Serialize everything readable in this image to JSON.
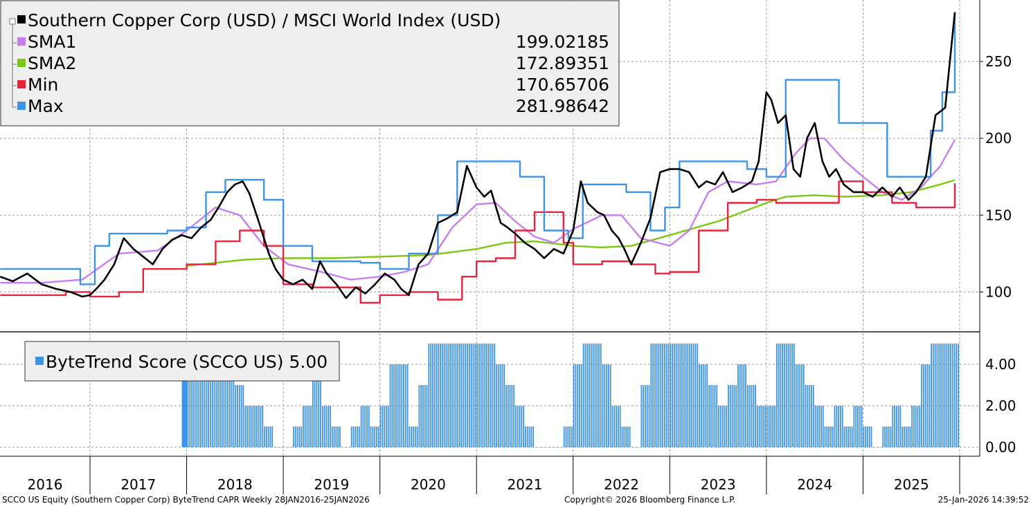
{
  "chart_data": [
    {
      "type": "line",
      "title": "Southern Copper Corp (USD) / MSCI World Index (USD)",
      "x_labels": [
        "2016",
        "2017",
        "2018",
        "2019",
        "2020",
        "2021",
        "2022",
        "2023",
        "2024",
        "2025"
      ],
      "x_range": [
        2016.07,
        2026.07
      ],
      "ylim": [
        75,
        290
      ],
      "yticks": [
        100,
        150,
        200,
        250
      ],
      "grid": true,
      "legend_position": "top-left",
      "series": [
        {
          "name": "Southern Copper Corp (USD) / MSCI World Index (USD)",
          "color": "#000000",
          "last": "",
          "x": [
            2016.07,
            2016.2,
            2016.35,
            2016.5,
            2016.65,
            2016.8,
            2016.92,
            2017.0,
            2017.08,
            2017.15,
            2017.25,
            2017.35,
            2017.45,
            2017.55,
            2017.65,
            2017.75,
            2017.85,
            2017.95,
            2018.05,
            2018.15,
            2018.25,
            2018.33,
            2018.42,
            2018.5,
            2018.58,
            2018.65,
            2018.75,
            2018.85,
            2018.92,
            2019.0,
            2019.1,
            2019.2,
            2019.3,
            2019.38,
            2019.45,
            2019.55,
            2019.65,
            2019.75,
            2019.85,
            2019.95,
            2020.05,
            2020.15,
            2020.22,
            2020.3,
            2020.4,
            2020.5,
            2020.6,
            2020.7,
            2020.8,
            2020.9,
            2021.0,
            2021.08,
            2021.15,
            2021.25,
            2021.32,
            2021.4,
            2021.5,
            2021.6,
            2021.7,
            2021.8,
            2021.9,
            2022.0,
            2022.08,
            2022.15,
            2022.25,
            2022.32,
            2022.4,
            2022.47,
            2022.53,
            2022.6,
            2022.7,
            2022.8,
            2022.9,
            2023.0,
            2023.1,
            2023.2,
            2023.3,
            2023.38,
            2023.47,
            2023.55,
            2023.65,
            2023.75,
            2023.85,
            2023.92,
            2024.0,
            2024.05,
            2024.12,
            2024.2,
            2024.28,
            2024.35,
            2024.42,
            2024.5,
            2024.58,
            2024.65,
            2024.72,
            2024.8,
            2024.9,
            2025.0,
            2025.1,
            2025.2,
            2025.3,
            2025.38,
            2025.47,
            2025.55,
            2025.65,
            2025.75,
            2025.85,
            2025.95
          ],
          "y": [
            110,
            107,
            112,
            105,
            102,
            100,
            97,
            98,
            103,
            108,
            118,
            135,
            128,
            123,
            118,
            128,
            134,
            137,
            135,
            142,
            147,
            155,
            165,
            170,
            172,
            164,
            145,
            125,
            115,
            108,
            105,
            108,
            102,
            120,
            112,
            105,
            96,
            103,
            99,
            105,
            112,
            108,
            102,
            98,
            118,
            125,
            145,
            148,
            152,
            182,
            168,
            162,
            166,
            145,
            142,
            138,
            132,
            128,
            122,
            128,
            125,
            140,
            172,
            158,
            152,
            150,
            140,
            135,
            128,
            118,
            132,
            148,
            178,
            180,
            180,
            178,
            168,
            172,
            170,
            178,
            165,
            168,
            172,
            185,
            230,
            225,
            210,
            215,
            180,
            175,
            200,
            210,
            185,
            175,
            180,
            170,
            165,
            165,
            162,
            168,
            162,
            168,
            160,
            165,
            175,
            215,
            220,
            281.99
          ]
        },
        {
          "name": "SMA1",
          "color": "#c77cf2",
          "last": "199.02185",
          "x": [
            2016.07,
            2016.5,
            2016.92,
            2017.3,
            2017.7,
            2018.0,
            2018.3,
            2018.55,
            2018.8,
            2019.05,
            2019.4,
            2019.7,
            2020.0,
            2020.25,
            2020.5,
            2020.75,
            2021.0,
            2021.2,
            2021.4,
            2021.6,
            2021.8,
            2022.0,
            2022.3,
            2022.5,
            2022.7,
            2023.0,
            2023.2,
            2023.4,
            2023.6,
            2023.9,
            2024.1,
            2024.3,
            2024.45,
            2024.6,
            2024.8,
            2025.0,
            2025.2,
            2025.4,
            2025.6,
            2025.8,
            2025.95
          ],
          "y": [
            106,
            106,
            108,
            125,
            127,
            140,
            155,
            150,
            130,
            118,
            113,
            108,
            110,
            113,
            118,
            142,
            157,
            158,
            146,
            136,
            132,
            141,
            150,
            150,
            135,
            130,
            140,
            165,
            172,
            170,
            172,
            190,
            200,
            200,
            186,
            175,
            165,
            160,
            168,
            182,
            199.02
          ]
        },
        {
          "name": "SMA2",
          "color": "#7dc714",
          "last": "172.89351",
          "x": [
            2018.0,
            2018.3,
            2018.6,
            2019.0,
            2019.5,
            2020.0,
            2020.5,
            2021.0,
            2021.3,
            2021.6,
            2022.0,
            2022.3,
            2022.6,
            2023.0,
            2023.5,
            2024.0,
            2024.2,
            2024.5,
            2024.8,
            2025.2,
            2025.5,
            2025.8,
            2025.95
          ],
          "y": [
            117,
            119,
            121,
            122,
            122,
            123,
            124,
            128,
            132,
            133,
            130,
            129,
            130,
            137,
            146,
            158,
            162,
            163,
            162,
            163,
            165,
            170,
            172.89
          ]
        },
        {
          "name": "Min",
          "color": "#e8233f",
          "last": "170.65706",
          "x": [
            2016.07,
            2016.4,
            2016.75,
            2017.0,
            2017.15,
            2017.3,
            2017.55,
            2017.85,
            2018.0,
            2018.3,
            2018.55,
            2018.8,
            2019.0,
            2019.3,
            2019.5,
            2019.8,
            2020.0,
            2020.3,
            2020.6,
            2020.85,
            2021.0,
            2021.2,
            2021.4,
            2021.6,
            2021.9,
            2022.0,
            2022.3,
            2022.6,
            2022.85,
            2023.0,
            2023.3,
            2023.6,
            2023.9,
            2024.1,
            2024.3,
            2024.5,
            2024.75,
            2025.0,
            2025.3,
            2025.55,
            2025.8,
            2025.95
          ],
          "y": [
            98,
            98,
            100,
            97,
            97,
            100,
            115,
            115,
            118,
            133,
            140,
            130,
            105,
            103,
            103,
            93,
            98,
            100,
            95,
            110,
            120,
            122,
            140,
            152,
            132,
            118,
            120,
            118,
            112,
            113,
            140,
            158,
            160,
            158,
            158,
            158,
            172,
            165,
            158,
            155,
            155,
            170.66
          ]
        },
        {
          "name": "Max",
          "color": "#3e93e6",
          "last": "281.98642",
          "x": [
            2016.07,
            2016.4,
            2016.7,
            2016.9,
            2017.05,
            2017.2,
            2017.4,
            2017.6,
            2017.8,
            2018.0,
            2018.2,
            2018.4,
            2018.55,
            2018.8,
            2019.0,
            2019.3,
            2019.5,
            2019.8,
            2020.0,
            2020.3,
            2020.6,
            2020.8,
            2020.95,
            2021.2,
            2021.45,
            2021.7,
            2021.95,
            2022.1,
            2022.3,
            2022.55,
            2022.8,
            2022.95,
            2023.1,
            2023.5,
            2023.8,
            2024.0,
            2024.2,
            2024.5,
            2024.75,
            2025.0,
            2025.25,
            2025.5,
            2025.7,
            2025.82,
            2025.95
          ],
          "y": [
            115,
            115,
            115,
            105,
            130,
            138,
            138,
            138,
            140,
            142,
            165,
            173,
            173,
            160,
            130,
            120,
            120,
            119,
            115,
            125,
            150,
            185,
            185,
            185,
            175,
            140,
            135,
            170,
            170,
            165,
            140,
            155,
            185,
            185,
            180,
            175,
            238,
            238,
            210,
            210,
            175,
            175,
            205,
            230,
            281.99
          ]
        }
      ]
    },
    {
      "type": "bar",
      "title": "ByteTrend Score (SCCO US) 5.00",
      "ylim": [
        0,
        5
      ],
      "yticks": [
        "0.00",
        "2.00",
        "4.00"
      ],
      "color": "#3e93e6",
      "grid": true,
      "legend_position": "top-left",
      "x": [
        2017.95,
        2018.0,
        2018.1,
        2018.2,
        2018.3,
        2018.4,
        2018.5,
        2018.6,
        2018.7,
        2018.8,
        2018.9,
        2019.0,
        2019.1,
        2019.2,
        2019.3,
        2019.4,
        2019.5,
        2019.6,
        2019.7,
        2019.8,
        2019.9,
        2020.0,
        2020.1,
        2020.2,
        2020.3,
        2020.4,
        2020.5,
        2020.6,
        2020.7,
        2020.8,
        2020.9,
        2021.0,
        2021.1,
        2021.2,
        2021.3,
        2021.4,
        2021.5,
        2021.6,
        2021.7,
        2021.8,
        2021.9,
        2022.0,
        2022.1,
        2022.2,
        2022.3,
        2022.4,
        2022.5,
        2022.6,
        2022.7,
        2022.8,
        2022.9,
        2023.0,
        2023.1,
        2023.2,
        2023.3,
        2023.4,
        2023.5,
        2023.6,
        2023.7,
        2023.8,
        2023.9,
        2024.0,
        2024.1,
        2024.2,
        2024.3,
        2024.4,
        2024.5,
        2024.6,
        2024.7,
        2024.8,
        2024.9,
        2025.0,
        2025.1,
        2025.2,
        2025.3,
        2025.4,
        2025.5,
        2025.6,
        2025.7,
        2025.8,
        2025.9
      ],
      "values": [
        5,
        5,
        5,
        5,
        5,
        4,
        3,
        2,
        2,
        1,
        0,
        0,
        1,
        2,
        5,
        2,
        1,
        0,
        1,
        2,
        1,
        2,
        4,
        4,
        1,
        3,
        5,
        5,
        5,
        5,
        5,
        5,
        5,
        4,
        3,
        2,
        1,
        0,
        0,
        0,
        1,
        4,
        5,
        5,
        4,
        2,
        1,
        0,
        3,
        5,
        5,
        5,
        5,
        5,
        4,
        3,
        2,
        3,
        4,
        3,
        2,
        2,
        5,
        5,
        4,
        3,
        2,
        1,
        2,
        1,
        2,
        1,
        0,
        1,
        2,
        1,
        2,
        4,
        5,
        5,
        5
      ]
    }
  ],
  "legend": {
    "main_title": "Southern Copper Corp (USD) / MSCI World Index (USD)",
    "rows": [
      {
        "label": "SMA1",
        "value": "199.02185",
        "color": "#c77cf2"
      },
      {
        "label": "SMA2",
        "value": "172.89351",
        "color": "#7dc714"
      },
      {
        "label": "Min",
        "value": "170.65706",
        "color": "#e8233f"
      },
      {
        "label": "Max",
        "value": "281.98642",
        "color": "#3e93e6"
      }
    ]
  },
  "score_legend": {
    "label": "ByteTrend Score (SCCO US) 5.00",
    "color": "#3e93e6"
  },
  "footer": {
    "left": "SCCO US Equity (Southern Copper Corp) ByteTrend CAPR Weekly 28JAN2016-25JAN2026",
    "center": "Copyright© 2026 Bloomberg Finance L.P.",
    "right": "25-Jan-2026 14:39:52"
  }
}
